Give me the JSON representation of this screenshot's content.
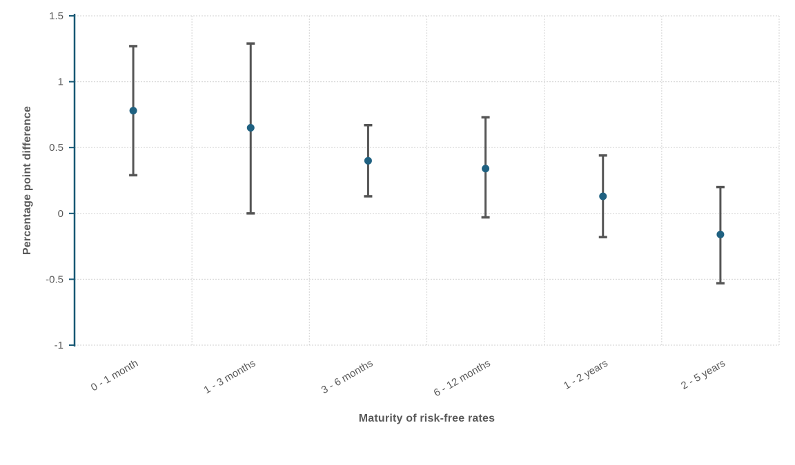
{
  "page": {
    "background": "#FFFFFF"
  },
  "chart_data": {
    "type": "scatter",
    "subtype": "dot-plot-with-error-bars",
    "title": "",
    "xlabel": "Maturity of risk-free rates",
    "ylabel": "Percentage point difference",
    "categories": [
      "0 - 1 month",
      "1 - 3 months",
      "3 - 6 months",
      "6 - 12 months",
      "1 - 2 years",
      "2 - 5 years"
    ],
    "series": [
      {
        "values": [
          0.78,
          0.65,
          0.4,
          0.34,
          0.13,
          -0.16
        ],
        "ci_low": [
          0.29,
          0.0,
          0.13,
          -0.03,
          -0.18,
          -0.53
        ],
        "ci_high": [
          1.27,
          1.29,
          0.67,
          0.73,
          0.44,
          0.2
        ]
      }
    ],
    "ylim": [
      -1,
      1.5
    ],
    "yticks": [
      1.5,
      1,
      0.5,
      0,
      -0.5,
      -1
    ],
    "ytick_labels": [
      "1.5",
      "1",
      "0.5",
      "0",
      "-0.5",
      "-1"
    ],
    "xtick_label_angle_deg": -30,
    "grid": "horizontal-major-and-vertical-category-boundaries",
    "legend": "none",
    "colors": {
      "marker": "#1F6181",
      "error_bar": "#555555",
      "axis_line": "#175874",
      "grid_line": "#D9D9D9",
      "tick_label": "#595959",
      "axis_title": "#595959"
    }
  }
}
